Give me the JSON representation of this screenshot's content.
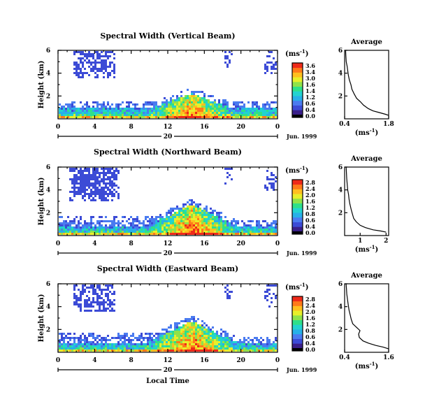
{
  "chart_data": [
    {
      "type": "heatmap",
      "title": "Spectral Width (Vertical Beam)",
      "ylabel": "Height (km)",
      "xlabel": "",
      "x_ticks": [
        "0",
        "4",
        "8",
        "12",
        "16",
        "20",
        "0"
      ],
      "xlim": [
        0,
        24
      ],
      "y_ticks": [
        "6",
        "4",
        "2"
      ],
      "ylim": [
        0,
        6
      ],
      "date_marker": "20",
      "date_label": "Jun. 1999",
      "colorbar": {
        "unit": "(ms",
        "unit_sup": "-1",
        "unit_close": ")",
        "ticks": [
          "3.6",
          "3.4",
          "3.0",
          "1.6",
          "1.4",
          "1.2",
          "0.6",
          "0.4",
          "0.0"
        ],
        "range": [
          0,
          3.6
        ]
      },
      "profile": {
        "title": "Average",
        "xlim": [
          0.4,
          1.8
        ],
        "x_ticks": [
          "0.4",
          "1.8"
        ],
        "y_ticks": [
          "6",
          "4",
          "2"
        ],
        "xlabel": "(ms",
        "xlabel_sup": "-1",
        "xlabel_close": ")",
        "points": [
          [
            1.8,
            0.3
          ],
          [
            1.7,
            0.4
          ],
          [
            1.5,
            0.55
          ],
          [
            1.3,
            0.7
          ],
          [
            1.15,
            0.9
          ],
          [
            1.0,
            1.2
          ],
          [
            0.9,
            1.5
          ],
          [
            0.78,
            1.8
          ],
          [
            0.7,
            2.2
          ],
          [
            0.63,
            2.6
          ],
          [
            0.6,
            3.0
          ],
          [
            0.55,
            3.4
          ],
          [
            0.52,
            3.8
          ],
          [
            0.5,
            4.2
          ],
          [
            0.48,
            4.6
          ],
          [
            0.45,
            5.0
          ],
          [
            0.44,
            5.5
          ],
          [
            0.43,
            6.0
          ]
        ]
      }
    },
    {
      "type": "heatmap",
      "title": "Spectral Width (Northward Beam)",
      "ylabel": "Height (km)",
      "xlabel": "",
      "x_ticks": [
        "0",
        "4",
        "8",
        "12",
        "16",
        "20",
        "0"
      ],
      "xlim": [
        0,
        24
      ],
      "y_ticks": [
        "6",
        "4",
        "2"
      ],
      "ylim": [
        0,
        6
      ],
      "date_marker": "20",
      "date_label": "Jun. 1999",
      "colorbar": {
        "unit": "(ms",
        "unit_sup": "-1",
        "unit_close": ")",
        "ticks": [
          "2.8",
          "2.4",
          "2.0",
          "1.6",
          "1.2",
          "0.8",
          "0.6",
          "0.4",
          "0.0"
        ],
        "range": [
          0,
          2.8
        ]
      },
      "profile": {
        "title": "Average",
        "xlim": [
          0.4,
          2.1
        ],
        "x_ticks": [
          "1",
          "2"
        ],
        "y_ticks": [
          "6",
          "4",
          "2"
        ],
        "xlabel": "(ms",
        "xlabel_sup": "-1",
        "xlabel_close": ")",
        "points": [
          [
            2.0,
            0.3
          ],
          [
            1.8,
            0.4
          ],
          [
            1.5,
            0.5
          ],
          [
            1.2,
            0.7
          ],
          [
            1.0,
            0.9
          ],
          [
            0.85,
            1.2
          ],
          [
            0.75,
            1.5
          ],
          [
            0.7,
            1.9
          ],
          [
            0.65,
            2.3
          ],
          [
            0.6,
            2.8
          ],
          [
            0.57,
            3.2
          ],
          [
            0.55,
            3.6
          ],
          [
            0.52,
            4.0
          ],
          [
            0.5,
            4.5
          ],
          [
            0.48,
            5.0
          ],
          [
            0.47,
            5.5
          ],
          [
            0.46,
            6.0
          ]
        ]
      }
    },
    {
      "type": "heatmap",
      "title": "Spectral Width (Eastward Beam)",
      "ylabel": "Height (km)",
      "xlabel": "Local Time",
      "x_ticks": [
        "0",
        "4",
        "8",
        "12",
        "16",
        "20",
        "0"
      ],
      "xlim": [
        0,
        24
      ],
      "y_ticks": [
        "6",
        "4",
        "2"
      ],
      "ylim": [
        0,
        6
      ],
      "date_marker": "20",
      "date_label": "Jun. 1999",
      "colorbar": {
        "unit": "(ms",
        "unit_sup": "-1",
        "unit_close": ")",
        "ticks": [
          "2.8",
          "2.4",
          "2.0",
          "1.6",
          "1.2",
          "0.8",
          "0.6",
          "0.4",
          "0.0"
        ],
        "range": [
          0,
          2.8
        ]
      },
      "profile": {
        "title": "Average",
        "xlim": [
          0.4,
          1.6
        ],
        "x_ticks": [
          "0.4",
          "1.6"
        ],
        "y_ticks": [
          "6",
          "4",
          "2"
        ],
        "xlabel": "(ms",
        "xlabel_sup": "-1",
        "xlabel_close": ")",
        "points": [
          [
            1.6,
            0.3
          ],
          [
            1.45,
            0.45
          ],
          [
            1.25,
            0.6
          ],
          [
            1.05,
            0.8
          ],
          [
            0.9,
            1.0
          ],
          [
            0.8,
            1.3
          ],
          [
            0.78,
            1.6
          ],
          [
            0.82,
            1.9
          ],
          [
            0.72,
            2.2
          ],
          [
            0.62,
            2.5
          ],
          [
            0.58,
            2.9
          ],
          [
            0.55,
            3.3
          ],
          [
            0.52,
            3.7
          ],
          [
            0.5,
            4.1
          ],
          [
            0.48,
            4.6
          ],
          [
            0.46,
            5.1
          ],
          [
            0.45,
            5.6
          ],
          [
            0.44,
            6.0
          ]
        ]
      }
    }
  ],
  "colors": {
    "scale": [
      "#3a1f8a",
      "#3c4bd6",
      "#4a7bf0",
      "#27b0e8",
      "#22d3d0",
      "#2ee08a",
      "#8fe24a",
      "#e8ef2a",
      "#ffbf1f",
      "#ff7a1a",
      "#ef2a1a"
    ],
    "colorbar_bottom": "#000000"
  }
}
